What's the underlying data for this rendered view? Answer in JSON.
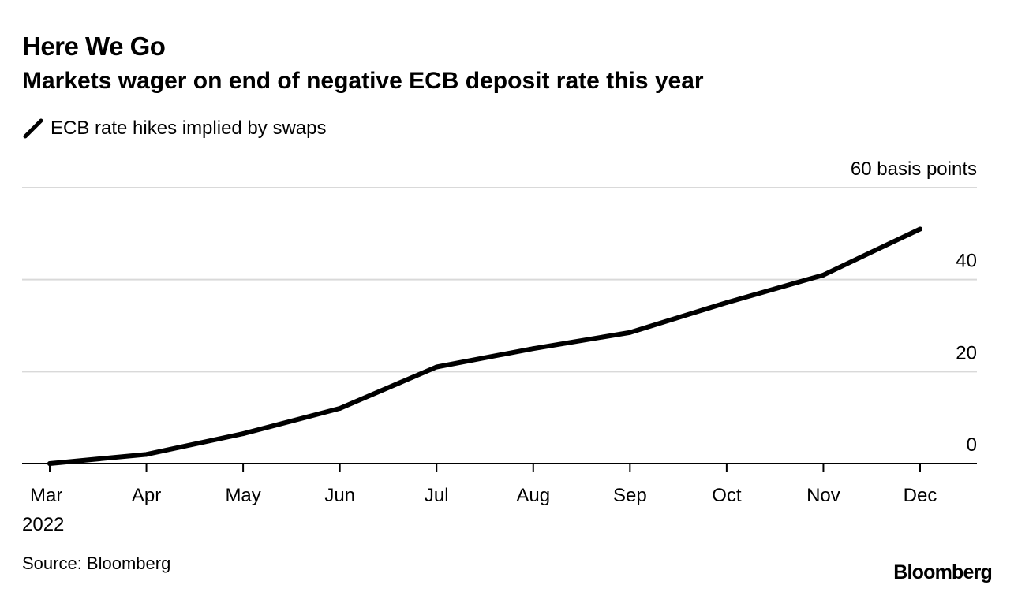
{
  "header": {
    "title": "Here We Go",
    "subtitle": "Markets wager on end of negative ECB deposit rate this year"
  },
  "legend": {
    "label": "ECB rate hikes implied by swaps",
    "icon": "line-swatch-icon"
  },
  "footer": {
    "source": "Source: Bloomberg",
    "brand": "Bloomberg"
  },
  "colors": {
    "line": "#000000",
    "grid": "#d9d9d9",
    "axis": "#000000",
    "text": "#000000"
  },
  "chart_data": {
    "type": "line",
    "title": "Here We Go",
    "subtitle": "Markets wager on end of negative ECB deposit rate this year",
    "xlabel": "",
    "ylabel": "60 basis points",
    "y_unit_label": "60 basis points",
    "x": [
      "Mar",
      "Apr",
      "May",
      "Jun",
      "Jul",
      "Aug",
      "Sep",
      "Oct",
      "Nov",
      "Dec"
    ],
    "x_year_label": "2022",
    "series": [
      {
        "name": "ECB rate hikes implied by swaps",
        "values": [
          0,
          2,
          6.5,
          12,
          21,
          25,
          28.5,
          35,
          41,
          51
        ]
      }
    ],
    "ylim": [
      0,
      60
    ],
    "yticks": [
      0,
      20,
      40,
      60
    ],
    "ytick_labels": [
      "0",
      "20",
      "40",
      "60 basis points"
    ],
    "grid": true,
    "y_axis_side": "right",
    "legend_position": "top-left"
  }
}
